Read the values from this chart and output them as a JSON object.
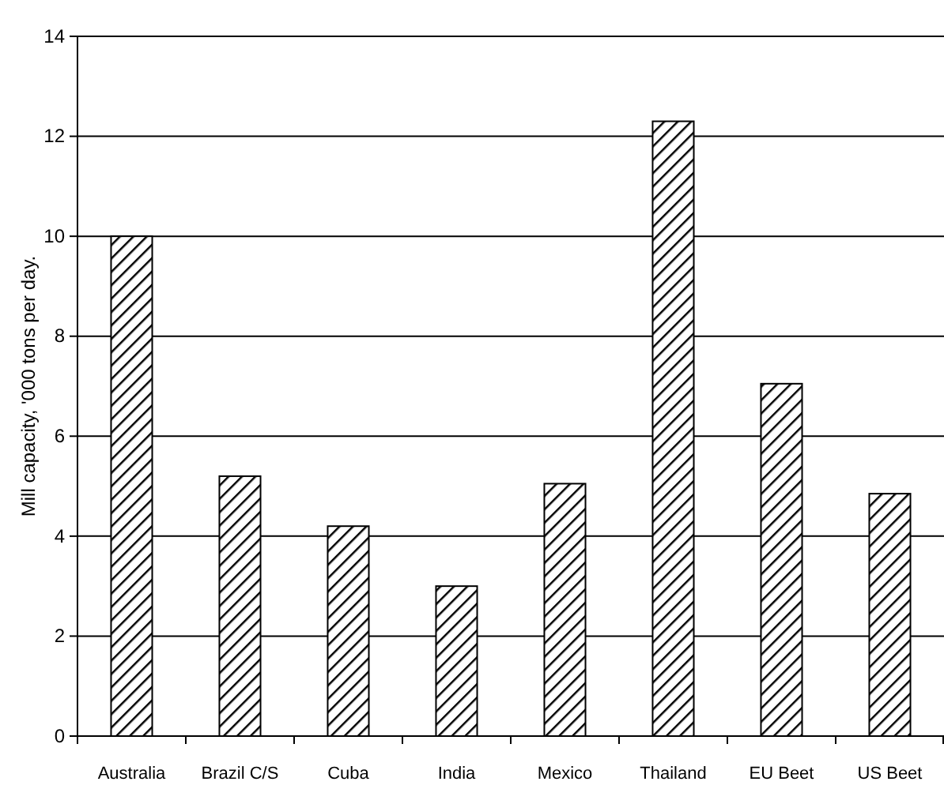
{
  "chart_data": {
    "type": "bar",
    "ylabel": "Mill capacity, '000 tons per day.",
    "categories": [
      "Australia",
      "Brazil C/S",
      "Cuba",
      "India",
      "Mexico",
      "Thailand",
      "EU Beet",
      "US Beet"
    ],
    "values": [
      10,
      5.2,
      4.2,
      3.0,
      5.05,
      12.3,
      7.05,
      4.85
    ],
    "color": "#000000",
    "ylim": [
      0,
      14
    ],
    "yticks": [
      0,
      2,
      4,
      6,
      8,
      10,
      12,
      14
    ],
    "grid": "y"
  }
}
